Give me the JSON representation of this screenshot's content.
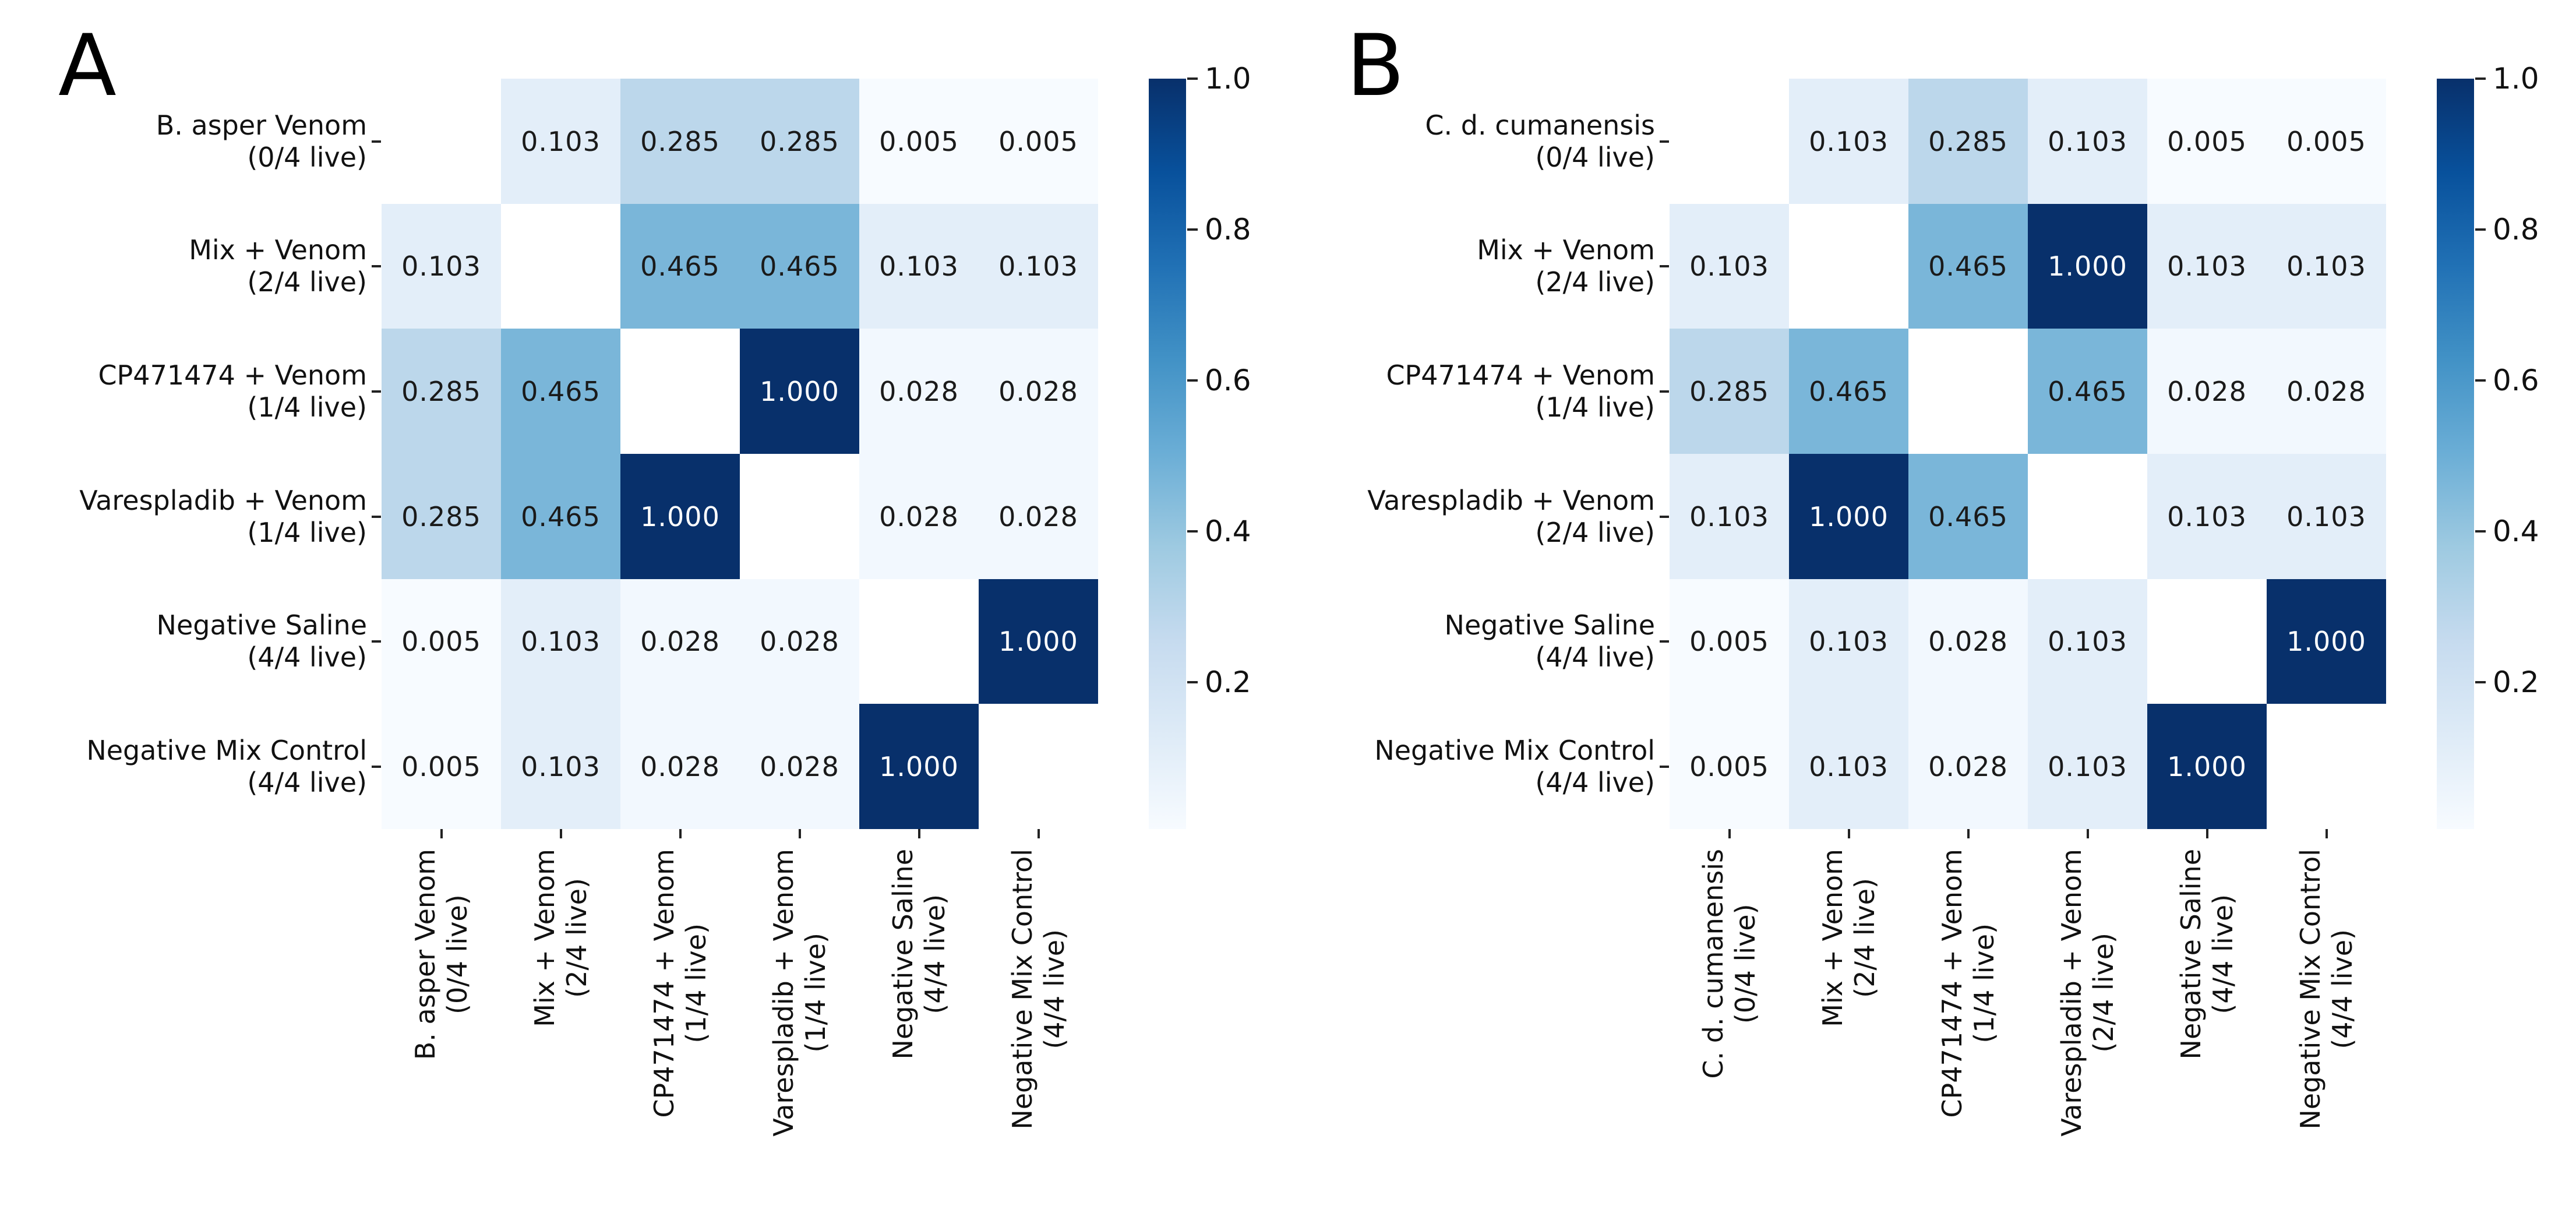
{
  "figure": {
    "background": "#ffffff",
    "description_visible_text_only": true
  },
  "colors": {
    "colormap_blues_anchors": [
      "#f7fbff",
      "#deebf7",
      "#c6dbef",
      "#9ecae1",
      "#6baed6",
      "#4292c6",
      "#2171b5",
      "#08519c",
      "#08306b"
    ],
    "masked_diagonal": "#ffffff",
    "annotation_dark": "#1a1a1a",
    "annotation_light": "#ffffff",
    "tick_color": "#222222"
  },
  "chart_data": [
    {
      "type": "heatmap",
      "panel_label": "A",
      "categories": [
        {
          "name": "B. asper Venom",
          "sub": "(0/4 live)"
        },
        {
          "name": "Mix + Venom",
          "sub": "(2/4 live)"
        },
        {
          "name": "CP471474 + Venom",
          "sub": "(1/4 live)"
        },
        {
          "name": "Varespladib + Venom",
          "sub": "(1/4 live)"
        },
        {
          "name": "Negative Saline",
          "sub": "(4/4 live)"
        },
        {
          "name": "Negative Mix Control",
          "sub": "(4/4 live)"
        }
      ],
      "matrix": [
        [
          null,
          0.103,
          0.285,
          0.285,
          0.005,
          0.005
        ],
        [
          0.103,
          null,
          0.465,
          0.465,
          0.103,
          0.103
        ],
        [
          0.285,
          0.465,
          null,
          1.0,
          0.028,
          0.028
        ],
        [
          0.285,
          0.465,
          1.0,
          null,
          0.028,
          0.028
        ],
        [
          0.005,
          0.103,
          0.028,
          0.028,
          null,
          1.0
        ],
        [
          0.005,
          0.103,
          0.028,
          0.028,
          1.0,
          null
        ]
      ],
      "value_decimals": 3,
      "diagonal_masked": true,
      "grid": false,
      "colorbar": {
        "position": "right",
        "colormap": "Blues",
        "vmin": 0.005,
        "vmax": 1.0,
        "ticks": [
          1.0,
          0.8,
          0.6,
          0.4,
          0.2
        ],
        "tick_decimals": 1
      }
    },
    {
      "type": "heatmap",
      "panel_label": "B",
      "categories": [
        {
          "name": "C. d. cumanensis",
          "sub": "(0/4 live)"
        },
        {
          "name": "Mix + Venom",
          "sub": "(2/4 live)"
        },
        {
          "name": "CP471474 + Venom",
          "sub": "(1/4 live)"
        },
        {
          "name": "Varespladib + Venom",
          "sub": "(2/4 live)"
        },
        {
          "name": "Negative Saline",
          "sub": "(4/4 live)"
        },
        {
          "name": "Negative Mix Control",
          "sub": "(4/4 live)"
        }
      ],
      "matrix": [
        [
          null,
          0.103,
          0.285,
          0.103,
          0.005,
          0.005
        ],
        [
          0.103,
          null,
          0.465,
          1.0,
          0.103,
          0.103
        ],
        [
          0.285,
          0.465,
          null,
          0.465,
          0.028,
          0.028
        ],
        [
          0.103,
          1.0,
          0.465,
          null,
          0.103,
          0.103
        ],
        [
          0.005,
          0.103,
          0.028,
          0.103,
          null,
          1.0
        ],
        [
          0.005,
          0.103,
          0.028,
          0.103,
          1.0,
          null
        ]
      ],
      "value_decimals": 3,
      "diagonal_masked": true,
      "grid": false,
      "colorbar": {
        "position": "right",
        "colormap": "Blues",
        "vmin": 0.005,
        "vmax": 1.0,
        "ticks": [
          1.0,
          0.8,
          0.6,
          0.4,
          0.2
        ],
        "tick_decimals": 1
      }
    }
  ]
}
